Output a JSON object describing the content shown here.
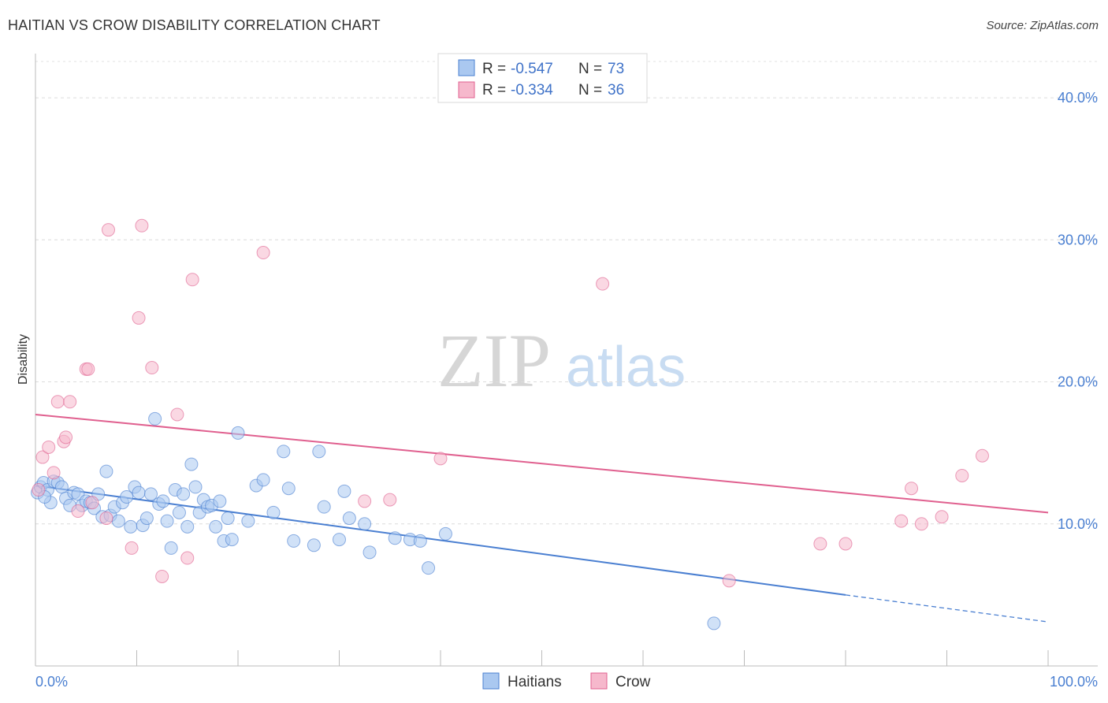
{
  "title": "HAITIAN VS CROW DISABILITY CORRELATION CHART",
  "source": "Source: ZipAtlas.com",
  "watermark": {
    "zip": "ZIP",
    "atlas": "atlas"
  },
  "legend": {
    "rows": [
      {
        "r_label": "R =",
        "r_value": "-0.547",
        "n_label": "N =",
        "n_value": "73",
        "color": "#aac8f0"
      },
      {
        "r_label": "R =",
        "r_value": "-0.334",
        "n_label": "N =",
        "n_value": "36",
        "color": "#f6b8cc"
      }
    ]
  },
  "bottom_legend": {
    "series1": "Haitians",
    "series2": "Crow"
  },
  "chart_data": {
    "type": "scatter",
    "title": "HAITIAN VS CROW DISABILITY CORRELATION CHART",
    "xlabel": "",
    "ylabel": "Disability",
    "xlim": [
      0,
      100
    ],
    "ylim": [
      0,
      43
    ],
    "x_tick_labels": [
      "0.0%",
      "100.0%"
    ],
    "y_ticks": [
      10,
      20,
      30,
      40
    ],
    "y_tick_labels": [
      "10.0%",
      "20.0%",
      "30.0%",
      "40.0%"
    ],
    "grid": true,
    "series": [
      {
        "name": "Haitians",
        "color": "#4a7fd1",
        "fill": "#aac8f0",
        "trend": {
          "x0": 0,
          "y0": 12.7,
          "x1": 80,
          "y1": 5.0,
          "dashed_to_x": 100,
          "dashed_to_y": 3.1
        },
        "points": [
          [
            0.2,
            12.2
          ],
          [
            0.5,
            12.6
          ],
          [
            0.8,
            12.9
          ],
          [
            1.2,
            12.4
          ],
          [
            1.5,
            11.5
          ],
          [
            1.8,
            13.0
          ],
          [
            2.2,
            12.9
          ],
          [
            2.6,
            12.6
          ],
          [
            3.0,
            11.8
          ],
          [
            3.4,
            11.3
          ],
          [
            3.8,
            12.2
          ],
          [
            4.2,
            12.1
          ],
          [
            4.6,
            11.3
          ],
          [
            5.0,
            11.6
          ],
          [
            5.4,
            11.5
          ],
          [
            5.8,
            11.1
          ],
          [
            6.2,
            12.1
          ],
          [
            6.6,
            10.5
          ],
          [
            7.0,
            13.7
          ],
          [
            7.4,
            10.6
          ],
          [
            7.8,
            11.2
          ],
          [
            8.2,
            10.2
          ],
          [
            8.6,
            11.5
          ],
          [
            9.0,
            11.9
          ],
          [
            9.4,
            9.8
          ],
          [
            9.8,
            12.6
          ],
          [
            10.2,
            12.2
          ],
          [
            10.6,
            9.9
          ],
          [
            11.0,
            10.4
          ],
          [
            11.4,
            12.1
          ],
          [
            11.8,
            17.4
          ],
          [
            12.2,
            11.4
          ],
          [
            12.6,
            11.6
          ],
          [
            13.0,
            10.2
          ],
          [
            13.4,
            8.3
          ],
          [
            13.8,
            12.4
          ],
          [
            14.2,
            10.8
          ],
          [
            14.6,
            12.1
          ],
          [
            15.0,
            9.8
          ],
          [
            15.4,
            14.2
          ],
          [
            15.8,
            12.6
          ],
          [
            16.2,
            10.8
          ],
          [
            16.6,
            11.7
          ],
          [
            17.0,
            11.2
          ],
          [
            17.4,
            11.3
          ],
          [
            17.8,
            9.8
          ],
          [
            18.2,
            11.6
          ],
          [
            18.6,
            8.8
          ],
          [
            19.0,
            10.4
          ],
          [
            19.4,
            8.9
          ],
          [
            20.0,
            16.4
          ],
          [
            21.0,
            10.2
          ],
          [
            21.8,
            12.7
          ],
          [
            22.5,
            13.1
          ],
          [
            23.5,
            10.8
          ],
          [
            24.5,
            15.1
          ],
          [
            25.0,
            12.5
          ],
          [
            25.5,
            8.8
          ],
          [
            27.5,
            8.5
          ],
          [
            28.0,
            15.1
          ],
          [
            28.5,
            11.2
          ],
          [
            30.0,
            8.9
          ],
          [
            30.5,
            12.3
          ],
          [
            31.0,
            10.4
          ],
          [
            32.5,
            10.0
          ],
          [
            33.0,
            8.0
          ],
          [
            35.5,
            9.0
          ],
          [
            37.0,
            8.9
          ],
          [
            38.0,
            8.8
          ],
          [
            38.8,
            6.9
          ],
          [
            40.5,
            9.3
          ],
          [
            67.0,
            3.0
          ],
          [
            0.9,
            11.9
          ]
        ]
      },
      {
        "name": "Crow",
        "color": "#e0608f",
        "fill": "#f6b8cc",
        "trend": {
          "x0": 0,
          "y0": 17.7,
          "x1": 100,
          "y1": 10.8
        },
        "points": [
          [
            0.3,
            12.4
          ],
          [
            0.7,
            14.7
          ],
          [
            1.3,
            15.4
          ],
          [
            1.8,
            13.6
          ],
          [
            2.2,
            18.6
          ],
          [
            2.8,
            15.8
          ],
          [
            3.0,
            16.1
          ],
          [
            3.4,
            18.6
          ],
          [
            4.2,
            10.9
          ],
          [
            5.0,
            20.9
          ],
          [
            5.2,
            20.9
          ],
          [
            5.6,
            11.5
          ],
          [
            7.0,
            10.4
          ],
          [
            7.2,
            30.7
          ],
          [
            9.5,
            8.3
          ],
          [
            10.2,
            24.5
          ],
          [
            10.5,
            31.0
          ],
          [
            11.5,
            21.0
          ],
          [
            12.5,
            6.3
          ],
          [
            14.0,
            17.7
          ],
          [
            15.0,
            7.6
          ],
          [
            15.5,
            27.2
          ],
          [
            22.5,
            29.1
          ],
          [
            32.5,
            11.6
          ],
          [
            35.0,
            11.7
          ],
          [
            40.0,
            14.6
          ],
          [
            56.0,
            26.9
          ],
          [
            68.5,
            6.0
          ],
          [
            77.5,
            8.6
          ],
          [
            80.0,
            8.6
          ],
          [
            85.5,
            10.2
          ],
          [
            86.5,
            12.5
          ],
          [
            87.5,
            10.0
          ],
          [
            89.5,
            10.5
          ],
          [
            91.5,
            13.4
          ],
          [
            93.5,
            14.8
          ]
        ]
      }
    ]
  }
}
